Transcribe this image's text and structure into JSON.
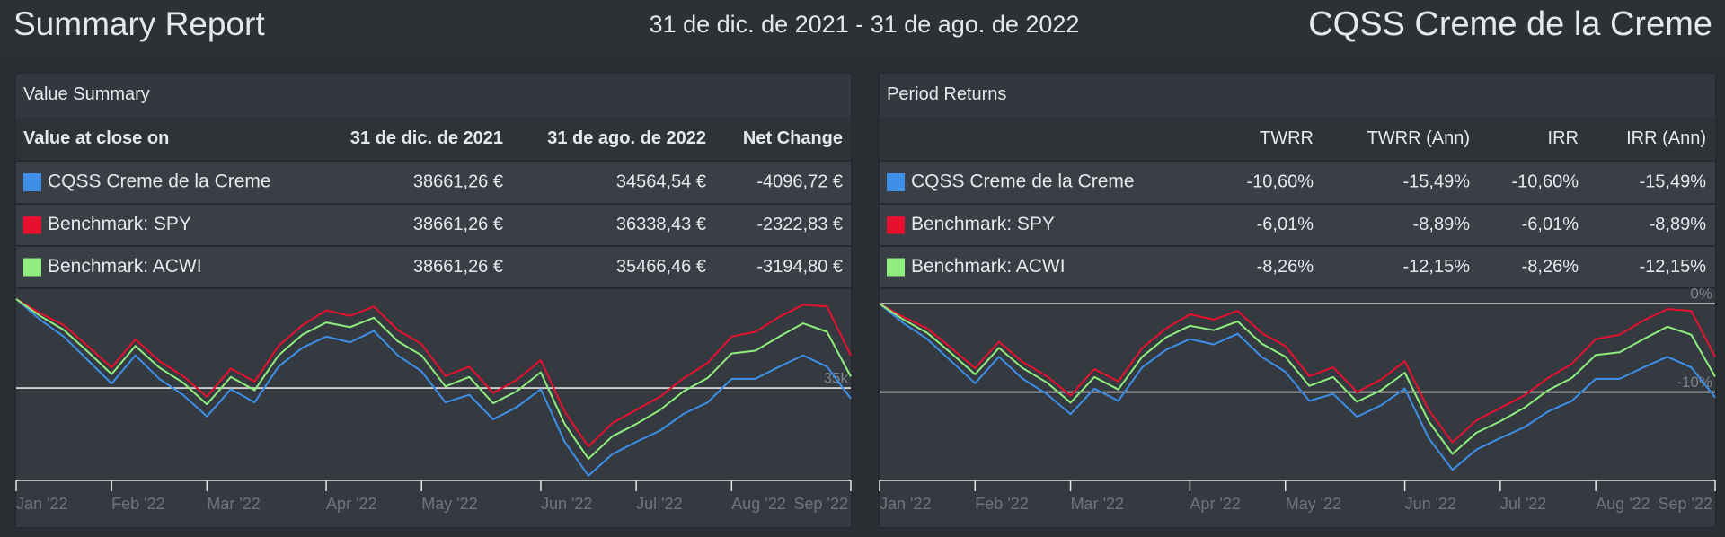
{
  "header": {
    "title": "Summary Report",
    "date_range": "31 de dic. de 2021 - 31 de ago. de 2022",
    "portfolio": "CQSS Creme de la Creme"
  },
  "value_summary": {
    "title": "Value Summary",
    "row_header": "Value at close on",
    "columns": [
      "31 de dic. de 2021",
      "31 de ago. de 2022",
      "Net Change"
    ],
    "rows": [
      {
        "name": "CQSS Creme de la Creme",
        "cells": [
          "38661,26 €",
          "34564,54 €",
          "-4096,72 €"
        ]
      },
      {
        "name": "Benchmark: SPY",
        "cells": [
          "38661,26 €",
          "36338,43 €",
          "-2322,83 €"
        ]
      },
      {
        "name": "Benchmark: ACWI",
        "cells": [
          "38661,26 €",
          "35466,46 €",
          "-3194,80 €"
        ]
      }
    ]
  },
  "period_returns": {
    "title": "Period Returns",
    "columns": [
      "TWRR",
      "TWRR (Ann)",
      "IRR",
      "IRR (Ann)"
    ],
    "rows": [
      {
        "name": "CQSS Creme de la Creme",
        "cells": [
          "-10,60%",
          "-15,49%",
          "-10,60%",
          "-15,49%"
        ]
      },
      {
        "name": "Benchmark: SPY",
        "cells": [
          "-6,01%",
          "-8,89%",
          "-6,01%",
          "-8,89%"
        ]
      },
      {
        "name": "Benchmark: ACWI",
        "cells": [
          "-8,26%",
          "-12,15%",
          "-8,26%",
          "-12,15%"
        ]
      }
    ]
  },
  "chart_data": [
    {
      "type": "line",
      "categories": [
        "Jan '22",
        null,
        null,
        null,
        "Feb '22",
        null,
        null,
        null,
        "Mar '22",
        null,
        null,
        null,
        null,
        "Apr '22",
        null,
        null,
        null,
        "May '22",
        null,
        null,
        null,
        null,
        "Jun '22",
        null,
        null,
        null,
        "Jul '22",
        null,
        null,
        null,
        "Aug '22",
        null,
        null,
        null,
        null,
        "Sep '22"
      ],
      "ylim": [
        31200,
        39100
      ],
      "yticks": [
        {
          "value": 35000,
          "label": "35k"
        }
      ],
      "series": [
        {
          "color": "#3d8fe8",
          "values": [
            38661,
            37810,
            37115,
            36148,
            35182,
            36341,
            35375,
            34718,
            33828,
            34950,
            34408,
            35877,
            36651,
            37115,
            36883,
            37347,
            36341,
            35684,
            34408,
            34718,
            33712,
            34215,
            34950,
            32785,
            31393,
            32282,
            32785,
            33248,
            33944,
            34408,
            35375,
            35375,
            35877,
            36341,
            35877,
            34564.54
          ]
        },
        {
          "color": "#e8102e",
          "values": [
            38661,
            38081,
            37578,
            36728,
            35839,
            36999,
            36109,
            35491,
            34640,
            35800,
            35259,
            36728,
            37578,
            38197,
            37965,
            38352,
            37385,
            36805,
            35491,
            35877,
            34795,
            35336,
            36148,
            34022,
            32591,
            33558,
            34099,
            34640,
            35413,
            36032,
            37115,
            37308,
            37926,
            38429,
            38352,
            36338.43
          ]
        },
        {
          "color": "#90ee7e",
          "values": [
            38661,
            37965,
            37385,
            36496,
            35568,
            36728,
            35839,
            35220,
            34331,
            35452,
            34911,
            36341,
            37192,
            37695,
            37501,
            37888,
            36921,
            36341,
            35066,
            35452,
            34370,
            34872,
            35646,
            33519,
            32088,
            33016,
            33519,
            34099,
            34872,
            35413,
            36419,
            36535,
            37115,
            37656,
            37308,
            35466.46
          ]
        }
      ]
    },
    {
      "type": "line",
      "categories": [
        "Jan '22",
        null,
        null,
        null,
        "Feb '22",
        null,
        null,
        null,
        "Mar '22",
        null,
        null,
        null,
        null,
        "Apr '22",
        null,
        null,
        null,
        "May '22",
        null,
        null,
        null,
        null,
        "Jun '22",
        null,
        null,
        null,
        "Jul '22",
        null,
        null,
        null,
        "Aug '22",
        null,
        null,
        null,
        null,
        "Sep '22"
      ],
      "ylim": [
        -20,
        1.75
      ],
      "yticks": [
        {
          "value": 0,
          "label": "0%"
        },
        {
          "value": -10,
          "label": "-10%"
        }
      ],
      "series": [
        {
          "color": "#3d8fe8",
          "values": [
            0,
            -2.2,
            -4,
            -6.5,
            -9,
            -6,
            -8.5,
            -10.2,
            -12.5,
            -9.6,
            -11,
            -7.2,
            -5.2,
            -4,
            -4.6,
            -3.4,
            -6,
            -7.7,
            -11,
            -10.2,
            -12.8,
            -11.5,
            -9.6,
            -15.2,
            -18.8,
            -16.5,
            -15.2,
            -14,
            -12.2,
            -11,
            -8.5,
            -8.5,
            -7.2,
            -6,
            -7.2,
            -10.6
          ]
        },
        {
          "color": "#e8102e",
          "values": [
            0,
            -1.5,
            -2.8,
            -5,
            -7.3,
            -4.3,
            -6.6,
            -8.2,
            -10.4,
            -7.4,
            -8.8,
            -5,
            -2.8,
            -1.2,
            -1.8,
            -0.8,
            -3.3,
            -4.8,
            -8.2,
            -7.2,
            -10,
            -8.6,
            -6.5,
            -12,
            -15.7,
            -13.2,
            -11.8,
            -10.4,
            -8.4,
            -6.8,
            -4,
            -3.5,
            -1.9,
            -0.6,
            -0.8,
            -6.01
          ]
        },
        {
          "color": "#90ee7e",
          "values": [
            0,
            -1.8,
            -3.3,
            -5.6,
            -8,
            -5,
            -7.3,
            -8.9,
            -11.2,
            -8.3,
            -9.7,
            -6,
            -3.8,
            -2.5,
            -3,
            -2,
            -4.5,
            -6,
            -9.3,
            -8.3,
            -11.1,
            -9.8,
            -7.8,
            -13.3,
            -17,
            -14.6,
            -13.3,
            -11.8,
            -9.8,
            -8.4,
            -5.8,
            -5.5,
            -4,
            -2.6,
            -3.5,
            -8.26
          ]
        }
      ]
    }
  ]
}
